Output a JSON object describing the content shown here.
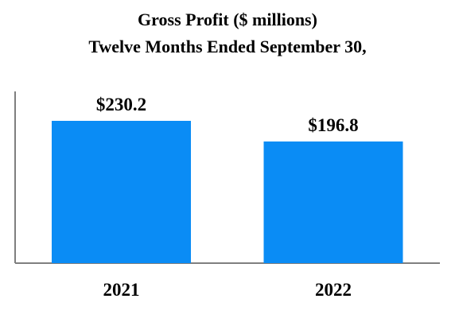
{
  "chart_data": {
    "type": "bar",
    "title": [
      "Gross Profit ($ millions)",
      "Twelve Months Ended September 30,"
    ],
    "categories": [
      "2021",
      "2022"
    ],
    "values": [
      230.2,
      196.8
    ],
    "data_labels": [
      "$230.2",
      "$196.8"
    ],
    "xlabel": "",
    "ylabel": "",
    "ylim": [
      0,
      290
    ],
    "grid": false,
    "legend": "none",
    "colors": {
      "bar": "#0A8CF5",
      "axis": "#7F7F7F"
    }
  }
}
